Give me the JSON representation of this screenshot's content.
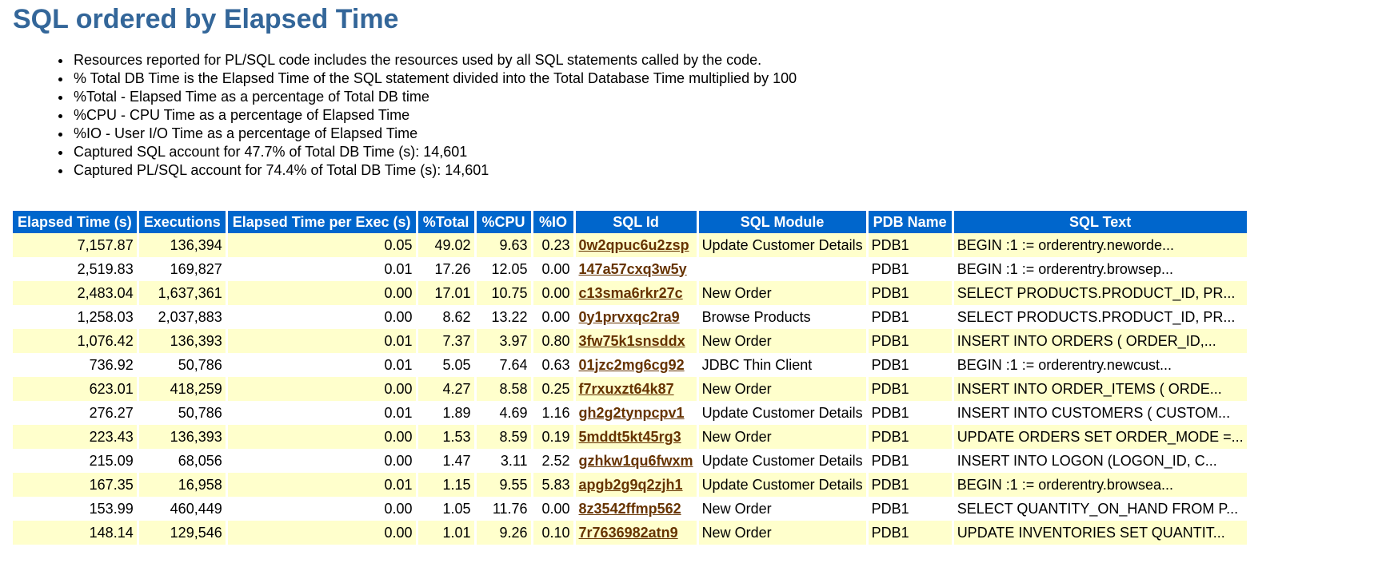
{
  "title": "SQL ordered by Elapsed Time",
  "notes": [
    "Resources reported for PL/SQL code includes the resources used by all SQL statements called by the code.",
    "% Total DB Time is the Elapsed Time of the SQL statement divided into the Total Database Time multiplied by 100",
    "%Total - Elapsed Time as a percentage of Total DB time",
    "%CPU - CPU Time as a percentage of Elapsed Time",
    "%IO - User I/O Time as a percentage of Elapsed Time",
    "Captured SQL account for 47.7% of Total DB Time (s): 14,601",
    "Captured PL/SQL account for 74.4% of Total DB Time (s): 14,601"
  ],
  "table": {
    "headers": [
      "Elapsed Time (s)",
      "Executions",
      "Elapsed Time per Exec (s)",
      "%Total",
      "%CPU",
      "%IO",
      "SQL Id",
      "SQL Module",
      "PDB Name",
      "SQL Text"
    ],
    "rows": [
      [
        "7,157.87",
        "136,394",
        "0.05",
        "49.02",
        "9.63",
        "0.23",
        "0w2qpuc6u2zsp",
        "Update Customer Details",
        "PDB1",
        "BEGIN :1 := orderentry.neworde..."
      ],
      [
        "2,519.83",
        "169,827",
        "0.01",
        "17.26",
        "12.05",
        "0.00",
        "147a57cxq3w5y",
        "",
        "PDB1",
        "BEGIN :1 := orderentry.browsep..."
      ],
      [
        "2,483.04",
        "1,637,361",
        "0.00",
        "17.01",
        "10.75",
        "0.00",
        "c13sma6rkr27c",
        "New Order",
        "PDB1",
        "SELECT PRODUCTS.PRODUCT_ID, PR..."
      ],
      [
        "1,258.03",
        "2,037,883",
        "0.00",
        "8.62",
        "13.22",
        "0.00",
        "0y1prvxqc2ra9",
        "Browse Products",
        "PDB1",
        "SELECT PRODUCTS.PRODUCT_ID, PR..."
      ],
      [
        "1,076.42",
        "136,393",
        "0.01",
        "7.37",
        "3.97",
        "0.80",
        "3fw75k1snsddx",
        "New Order",
        "PDB1",
        "INSERT INTO ORDERS ( ORDER_ID,..."
      ],
      [
        "736.92",
        "50,786",
        "0.01",
        "5.05",
        "7.64",
        "0.63",
        "01jzc2mg6cg92",
        "JDBC Thin Client",
        "PDB1",
        "BEGIN :1 := orderentry.newcust..."
      ],
      [
        "623.01",
        "418,259",
        "0.00",
        "4.27",
        "8.58",
        "0.25",
        "f7rxuxzt64k87",
        "New Order",
        "PDB1",
        "INSERT INTO ORDER_ITEMS ( ORDE..."
      ],
      [
        "276.27",
        "50,786",
        "0.01",
        "1.89",
        "4.69",
        "1.16",
        "gh2g2tynpcpv1",
        "Update Customer Details",
        "PDB1",
        "INSERT INTO CUSTOMERS ( CUSTOM..."
      ],
      [
        "223.43",
        "136,393",
        "0.00",
        "1.53",
        "8.59",
        "0.19",
        "5mddt5kt45rg3",
        "New Order",
        "PDB1",
        "UPDATE ORDERS SET ORDER_MODE =..."
      ],
      [
        "215.09",
        "68,056",
        "0.00",
        "1.47",
        "3.11",
        "2.52",
        "gzhkw1qu6fwxm",
        "Update Customer Details",
        "PDB1",
        "INSERT INTO LOGON (LOGON_ID, C..."
      ],
      [
        "167.35",
        "16,958",
        "0.01",
        "1.15",
        "9.55",
        "5.83",
        "apgb2g9q2zjh1",
        "Update Customer Details",
        "PDB1",
        "BEGIN :1 := orderentry.browsea..."
      ],
      [
        "153.99",
        "460,449",
        "0.00",
        "1.05",
        "11.76",
        "0.00",
        "8z3542ffmp562",
        "New Order",
        "PDB1",
        "SELECT QUANTITY_ON_HAND FROM P..."
      ],
      [
        "148.14",
        "129,546",
        "0.00",
        "1.01",
        "9.26",
        "0.10",
        "7r7636982atn9",
        "New Order",
        "PDB1",
        "UPDATE INVENTORIES SET QUANTIT..."
      ]
    ]
  },
  "colors": {
    "title": "#336699",
    "header_bg": "#0066cc",
    "row_highlight": "#ffffcc",
    "link": "#663300"
  }
}
